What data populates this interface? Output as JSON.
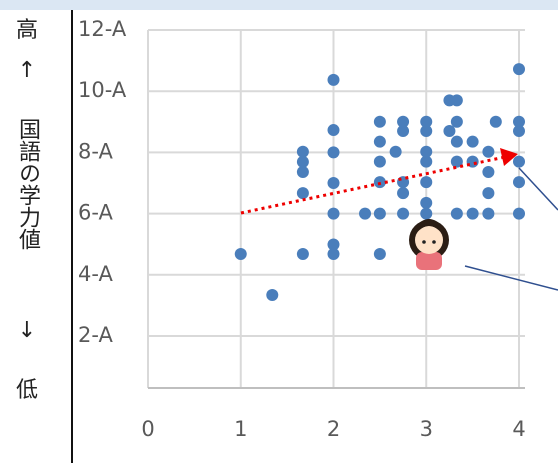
{
  "chart_data": {
    "type": "scatter",
    "y_label_parts": [
      "高",
      "↑",
      "国語の学力値",
      "↓",
      "低"
    ],
    "series": [
      {
        "color": "#4a7ebb",
        "x": [
          1,
          1.34,
          1.67,
          1.67,
          1.67,
          1.67,
          1.67,
          2,
          2,
          2,
          2,
          2,
          2,
          2,
          2.34,
          2.5,
          2.5,
          2.5,
          2.5,
          2.5,
          2.5,
          2.67,
          2.75,
          2.75,
          2.75,
          2.75,
          2.75,
          3,
          3,
          3,
          3,
          3,
          3,
          3,
          3.25,
          3.33,
          3.25,
          3.33,
          3.33,
          3.33,
          3.33,
          3.5,
          3.5,
          3.5,
          3.67,
          3.67,
          3.67,
          3.67,
          3.75,
          4,
          4,
          4,
          4,
          4,
          4
        ],
        "values": [
          4.68,
          3.34,
          4.68,
          6.67,
          7.36,
          7.69,
          8.02,
          10.37,
          8.73,
          8.0,
          7.0,
          6.0,
          4.99,
          4.68,
          6.0,
          6.0,
          7.03,
          7.7,
          8.35,
          9.0,
          4.68,
          8.02,
          7.03,
          6.67,
          6.0,
          9.0,
          8.7,
          6.0,
          6.35,
          7.03,
          7.7,
          8.02,
          8.7,
          9.0,
          9.7,
          9.7,
          8.7,
          9.0,
          8.35,
          7.7,
          6.0,
          8.35,
          7.7,
          6.0,
          8.02,
          7.36,
          6.67,
          6.0,
          9.0,
          10.72,
          9.0,
          8.7,
          7.7,
          7.03,
          6.0
        ]
      }
    ],
    "xlim": [
      0,
      4
    ],
    "xticks": [
      0,
      1,
      2,
      3,
      4
    ],
    "ylim": [
      0.3,
      12
    ],
    "yticks": [
      {
        "value": 2,
        "label": "2-A"
      },
      {
        "value": 4,
        "label": "4-A"
      },
      {
        "value": 6,
        "label": "6-A"
      },
      {
        "value": 8,
        "label": "8-A"
      },
      {
        "value": 10,
        "label": "10-A"
      },
      {
        "value": 12,
        "label": "12-A"
      }
    ],
    "grid": true
  }
}
